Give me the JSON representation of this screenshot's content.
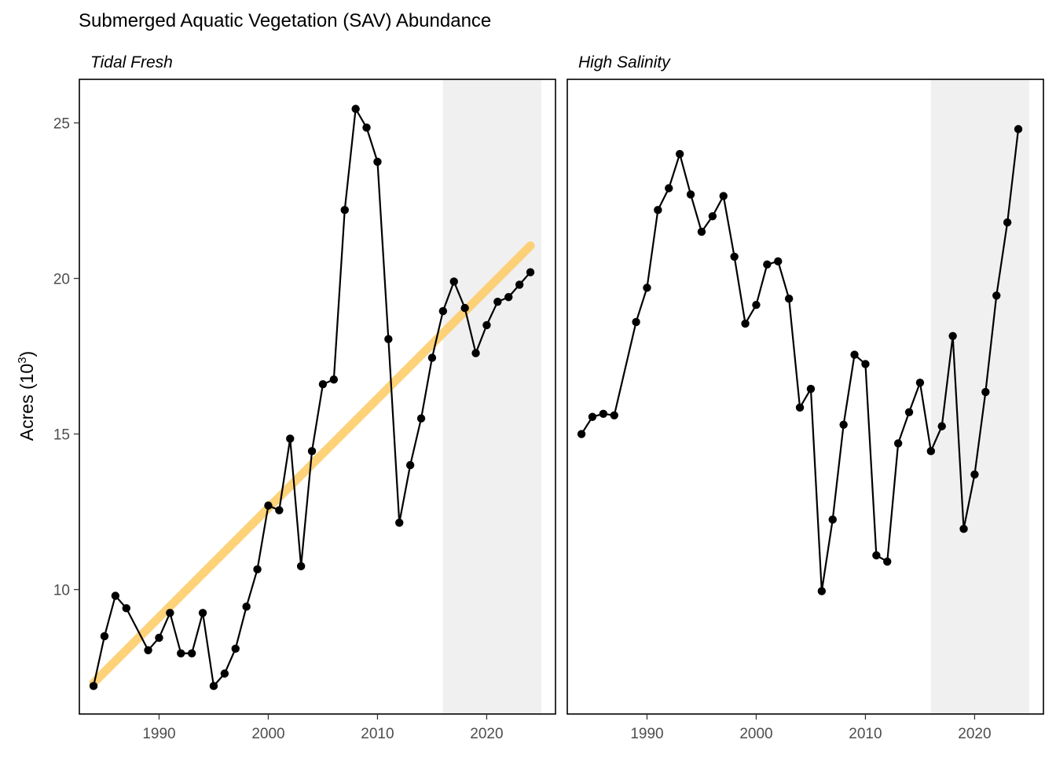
{
  "chart_data": {
    "type": "line",
    "title": "Submerged Aquatic Vegetation (SAV) Abundance",
    "ylabel_main": "Acres (10",
    "ylabel_sup": "3",
    "ylabel_close": ")",
    "ylim": [
      6.0,
      26.4
    ],
    "xlim": [
      1982.7,
      2026.3
    ],
    "y_ticks": [
      10,
      15,
      20,
      25
    ],
    "x_ticks": [
      1990,
      2000,
      2010,
      2020
    ],
    "x_tick_labels": [
      "1990",
      "2000",
      "2010",
      "2020"
    ],
    "y_tick_labels": [
      "10",
      "15",
      "20",
      "25"
    ],
    "shaded_region": {
      "x_start": 2016,
      "x_end": 2025,
      "color": "#f0f0f0"
    },
    "colors": {
      "line": "#000000",
      "trend": "#fdca62",
      "panel_border": "#000000"
    },
    "panels": [
      {
        "name": "Tidal Fresh",
        "series": [
          {
            "name": "Tidal Fresh",
            "x": [
              1984,
              1985,
              1986,
              1987,
              1989,
              1990,
              1991,
              1992,
              1993,
              1994,
              1995,
              1996,
              1997,
              1998,
              1999,
              2000,
              2001,
              2002,
              2003,
              2004,
              2005,
              2006,
              2007,
              2008,
              2009,
              2010,
              2011,
              2012,
              2013,
              2014,
              2015,
              2016,
              2017,
              2018,
              2019,
              2020,
              2021,
              2022,
              2023,
              2024
            ],
            "y": [
              6.9,
              8.5,
              9.8,
              9.4,
              8.05,
              8.45,
              9.25,
              7.95,
              7.95,
              9.25,
              6.9,
              7.3,
              8.1,
              9.45,
              10.65,
              12.7,
              12.55,
              14.85,
              10.75,
              14.45,
              16.6,
              16.75,
              22.2,
              25.45,
              24.85,
              23.75,
              18.05,
              12.15,
              14.0,
              15.5,
              17.45,
              18.95,
              19.9,
              19.05,
              17.6,
              18.5,
              19.25,
              19.4,
              19.8,
              20.2
            ]
          }
        ],
        "trend": {
          "x": [
            1984,
            2024
          ],
          "y": [
            7.0,
            21.05
          ]
        }
      },
      {
        "name": "High Salinity",
        "series": [
          {
            "name": "High Salinity",
            "x": [
              1984,
              1985,
              1986,
              1987,
              1989,
              1990,
              1991,
              1992,
              1993,
              1994,
              1995,
              1996,
              1997,
              1998,
              1999,
              2000,
              2001,
              2002,
              2003,
              2004,
              2005,
              2006,
              2007,
              2008,
              2009,
              2010,
              2011,
              2012,
              2013,
              2014,
              2015,
              2016,
              2017,
              2018,
              2019,
              2020,
              2021,
              2022,
              2023,
              2024
            ],
            "y": [
              15.0,
              15.55,
              15.65,
              15.6,
              18.6,
              19.7,
              22.2,
              22.9,
              24.0,
              22.7,
              21.5,
              22.0,
              22.65,
              20.7,
              18.55,
              19.15,
              20.45,
              20.55,
              19.35,
              15.85,
              16.45,
              9.95,
              12.25,
              15.3,
              17.55,
              17.25,
              11.1,
              10.9,
              14.7,
              15.7,
              16.65,
              14.45,
              15.25,
              18.15,
              11.95,
              13.7,
              16.35,
              19.45,
              21.8,
              24.8
            ]
          }
        ],
        "trend": null
      }
    ]
  }
}
